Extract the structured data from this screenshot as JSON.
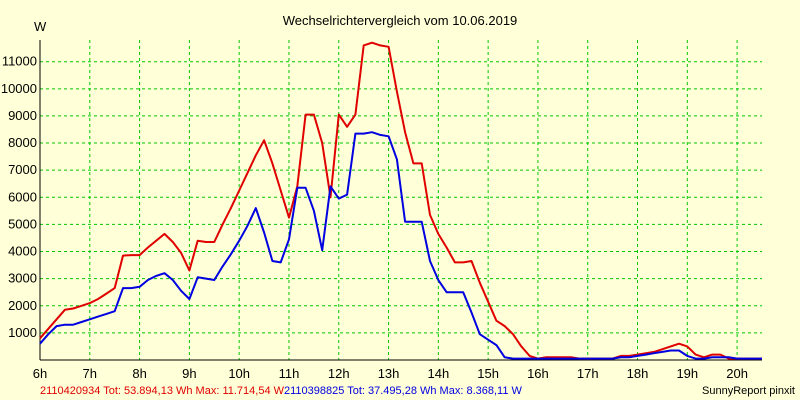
{
  "chart_data": {
    "type": "line",
    "title": "Wechselrichtervergleich vom 10.06.2019",
    "ylabel": "W",
    "xlabel": "",
    "xlim": [
      6.0,
      20.5
    ],
    "ylim": [
      0,
      11800
    ],
    "x_ticks": [
      6,
      7,
      8,
      9,
      10,
      11,
      12,
      13,
      14,
      15,
      16,
      17,
      18,
      19,
      20
    ],
    "x_tick_labels": [
      "6h",
      "7h",
      "8h",
      "9h",
      "10h",
      "11h",
      "12h",
      "13h",
      "14h",
      "15h",
      "16h",
      "17h",
      "18h",
      "19h",
      "20h"
    ],
    "y_ticks": [
      1000,
      2000,
      3000,
      4000,
      5000,
      6000,
      7000,
      8000,
      9000,
      10000,
      11000
    ],
    "y_tick_labels": [
      "1000",
      "2000",
      "3000",
      "4000",
      "5000",
      "6000",
      "7000",
      "8000",
      "9000",
      "10000",
      "11000"
    ],
    "grid": true,
    "x": [
      6.0,
      6.1667,
      6.3333,
      6.5,
      6.6667,
      6.8333,
      7.0,
      7.1667,
      7.3333,
      7.5,
      7.6667,
      7.8333,
      8.0,
      8.1667,
      8.3333,
      8.5,
      8.6667,
      8.8333,
      9.0,
      9.1667,
      9.3333,
      9.5,
      9.6667,
      9.8333,
      10.0,
      10.1667,
      10.3333,
      10.5,
      10.6667,
      10.8333,
      11.0,
      11.1667,
      11.3333,
      11.5,
      11.6667,
      11.8333,
      12.0,
      12.1667,
      12.3333,
      12.5,
      12.6667,
      12.8333,
      13.0,
      13.1667,
      13.3333,
      13.5,
      13.6667,
      13.8333,
      14.0,
      14.1667,
      14.3333,
      14.5,
      14.6667,
      14.8333,
      15.0,
      15.1667,
      15.3333,
      15.5,
      15.6667,
      15.8333,
      16.0,
      16.1667,
      16.3333,
      16.5,
      16.6667,
      16.8333,
      17.0,
      17.1667,
      17.3333,
      17.5,
      17.6667,
      17.8333,
      18.0,
      18.1667,
      18.3333,
      18.5,
      18.6667,
      18.8333,
      19.0,
      19.1667,
      19.3333,
      19.5,
      19.6667,
      19.8333,
      20.0,
      20.1667,
      20.3333,
      20.5
    ],
    "series": [
      {
        "name": "2110420934",
        "color": "#e00000",
        "values": [
          800,
          1150,
          1500,
          1850,
          1900,
          2000,
          2100,
          2250,
          2450,
          2650,
          3850,
          3870,
          3870,
          4150,
          4400,
          4650,
          4350,
          3950,
          3300,
          4400,
          4350,
          4350,
          5000,
          5600,
          6250,
          6900,
          7550,
          8100,
          7250,
          6250,
          5250,
          6400,
          9050,
          9050,
          8000,
          6000,
          9050,
          8600,
          9050,
          11600,
          11700,
          11600,
          11550,
          9900,
          8400,
          7250,
          7250,
          5350,
          4650,
          4150,
          3600,
          3600,
          3650,
          2850,
          2150,
          1450,
          1250,
          950,
          500,
          150,
          50,
          100,
          100,
          100,
          100,
          50,
          50,
          50,
          50,
          50,
          150,
          150,
          200,
          250,
          300,
          400,
          500,
          600,
          500,
          200,
          100,
          200,
          200,
          50,
          50,
          50,
          50,
          50
        ],
        "total_label": "2110420934 Tot: 53.894,13 Wh Max: 11.714,54 W"
      },
      {
        "name": "2110398825",
        "color": "#0000e0",
        "values": [
          600,
          950,
          1250,
          1300,
          1300,
          1400,
          1500,
          1600,
          1700,
          1800,
          2650,
          2650,
          2700,
          2950,
          3100,
          3200,
          2950,
          2550,
          2250,
          3050,
          3000,
          2950,
          3450,
          3900,
          4400,
          4950,
          5600,
          4700,
          3650,
          3600,
          4450,
          6350,
          6350,
          5500,
          4050,
          6400,
          5950,
          6100,
          8350,
          8350,
          8400,
          8300,
          8250,
          7400,
          5100,
          5100,
          5100,
          3650,
          2950,
          2500,
          2500,
          2500,
          1750,
          950,
          750,
          550,
          100,
          50,
          50,
          50,
          50,
          50,
          50,
          50,
          50,
          50,
          50,
          50,
          50,
          50,
          100,
          100,
          150,
          200,
          250,
          300,
          350,
          350,
          150,
          50,
          50,
          100,
          100,
          100,
          50,
          50,
          50,
          50
        ],
        "total_label": "2110398825 Tot: 37.495,28 Wh Max: 8.368,11 W"
      }
    ],
    "credit": "SunnyReport pinxit",
    "colors": {
      "background": "#ffffd8",
      "grid": "#00c800",
      "axis": "#000000"
    }
  }
}
